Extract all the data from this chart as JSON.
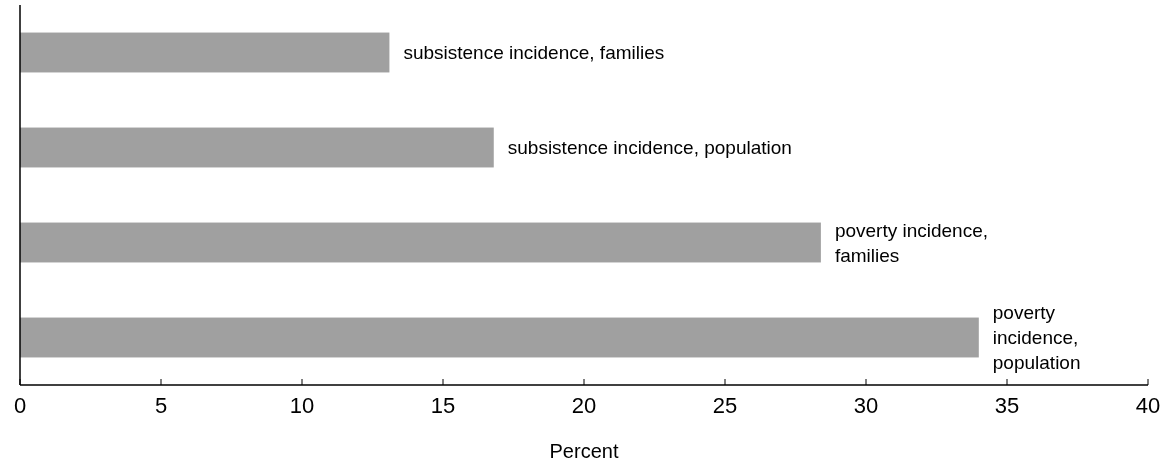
{
  "chart_data": {
    "type": "bar",
    "orientation": "horizontal",
    "xlabel": "Percent",
    "categories": [
      "subsistence incidence, families",
      "subsistence incidence, population",
      "poverty incidence,\nfamilies",
      "poverty\nincidence,\npopulation"
    ],
    "values": [
      13.1,
      16.8,
      28.4,
      34.0
    ],
    "color": "#a0a0a0",
    "xlim": [
      0,
      40
    ],
    "xticks": [
      0,
      5,
      10,
      15,
      20,
      25,
      30,
      35,
      40
    ],
    "grid": false
  }
}
